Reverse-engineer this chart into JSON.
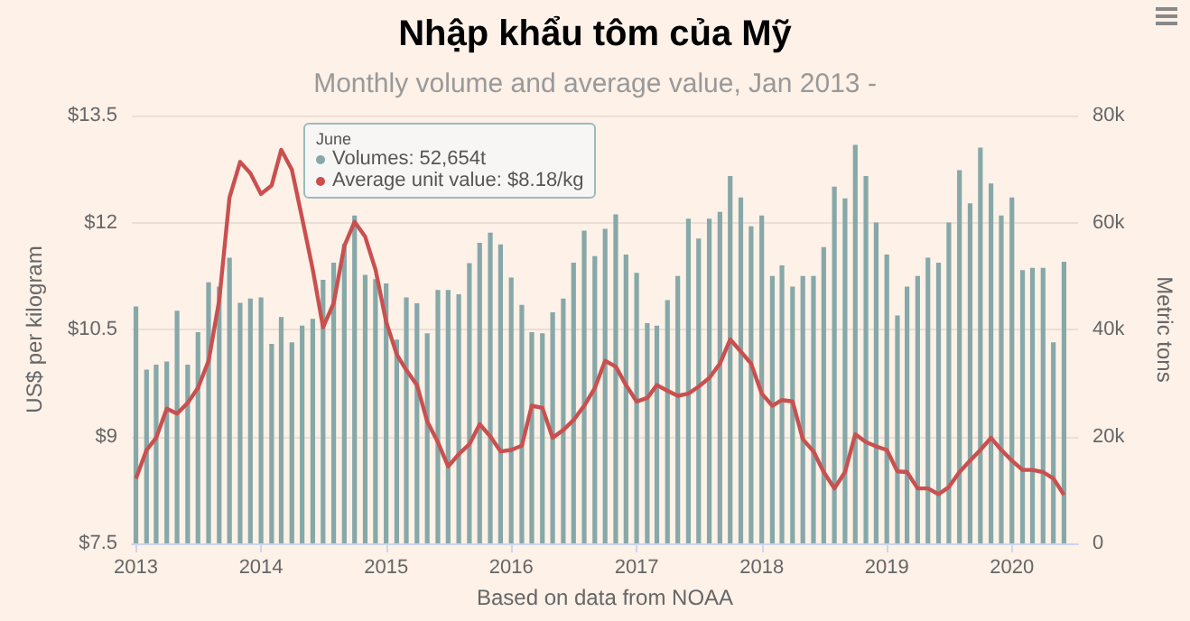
{
  "chart_data": {
    "type": "bar",
    "title": "Nhập khẩu tôm của Mỹ",
    "subtitle": "Monthly volume and average value, Jan 2013 -",
    "xlabel": "Based on data from NOAA",
    "ylabel": "US$ per kilogram",
    "y2label": "Metric tons",
    "annotations": [
      "June",
      "Volumes: 52,654t",
      "Average unit value: $8.18/kg"
    ],
    "x": [
      "2013-01",
      "2013-02",
      "2013-03",
      "2013-04",
      "2013-05",
      "2013-06",
      "2013-07",
      "2013-08",
      "2013-09",
      "2013-10",
      "2013-11",
      "2013-12",
      "2014-01",
      "2014-02",
      "2014-03",
      "2014-04",
      "2014-05",
      "2014-06",
      "2014-07",
      "2014-08",
      "2014-09",
      "2014-10",
      "2014-11",
      "2014-12",
      "2015-01",
      "2015-02",
      "2015-03",
      "2015-04",
      "2015-05",
      "2015-06",
      "2015-07",
      "2015-08",
      "2015-09",
      "2015-10",
      "2015-11",
      "2015-12",
      "2016-01",
      "2016-02",
      "2016-03",
      "2016-04",
      "2016-05",
      "2016-06",
      "2016-07",
      "2016-08",
      "2016-09",
      "2016-10",
      "2016-11",
      "2016-12",
      "2017-01",
      "2017-02",
      "2017-03",
      "2017-04",
      "2017-05",
      "2017-06",
      "2017-07",
      "2017-08",
      "2017-09",
      "2017-10",
      "2017-11",
      "2017-12",
      "2018-01",
      "2018-02",
      "2018-03",
      "2018-04",
      "2018-05",
      "2018-06",
      "2018-07",
      "2018-08",
      "2018-09",
      "2018-10",
      "2018-11",
      "2018-12",
      "2019-01",
      "2019-02",
      "2019-03",
      "2019-04",
      "2019-05",
      "2019-06",
      "2019-07",
      "2019-08",
      "2019-09",
      "2019-10",
      "2019-11",
      "2019-12",
      "2020-01",
      "2020-02",
      "2020-03",
      "2020-04",
      "2020-05",
      "2020-06"
    ],
    "xlim": [
      "2012-12-20",
      "2020-07-12"
    ],
    "xticks": [
      "2013",
      "2014",
      "2015",
      "2016",
      "2017",
      "2018",
      "2019",
      "2020"
    ],
    "ylim": [
      7.5,
      13.5
    ],
    "yticks": [
      {
        "value": 7.5,
        "label": "$7.5"
      },
      {
        "value": 9,
        "label": "$9"
      },
      {
        "value": 10.5,
        "label": "$10.5"
      },
      {
        "value": 12,
        "label": "$12"
      },
      {
        "value": 13.5,
        "label": "$13.5"
      }
    ],
    "y2lim": [
      0,
      80000
    ],
    "y2ticks": [
      0,
      {
        "value": 20000,
        "label": "20k"
      },
      {
        "value": 40000,
        "label": "40k"
      },
      {
        "value": 60000,
        "label": "60k"
      },
      {
        "value": 80000,
        "label": "80k"
      }
    ],
    "grid": "y",
    "marker": "none",
    "series": [
      {
        "axis": "y2",
        "color": "#86a8a8",
        "values": [
          44300,
          32500,
          33400,
          34000,
          43500,
          33400,
          39500,
          48800,
          48000,
          53400,
          45000,
          45800,
          46000,
          37300,
          42300,
          37600,
          40700,
          42000,
          49300,
          52500,
          56000,
          61300,
          50200,
          49400,
          48600,
          38100,
          46000,
          44900,
          39300,
          47400,
          47400,
          46600,
          52400,
          56200,
          58100,
          55900,
          49700,
          44600,
          39500,
          39300,
          43200,
          45800,
          52500,
          58500,
          53700,
          58800,
          61500,
          54000,
          50600,
          41200,
          40700,
          45500,
          50000,
          60700,
          57000,
          60700,
          62000,
          68700,
          64700,
          59300,
          61300,
          50000,
          52000,
          48000,
          50000,
          50000,
          55400,
          66700,
          64500,
          74500,
          68700,
          60000,
          54000,
          42600,
          48000,
          50000,
          53400,
          52500,
          60000,
          69800,
          63600,
          74000,
          67300,
          61300,
          64700,
          51100,
          51500,
          51500,
          37600,
          52654
        ]
      },
      {
        "type": "line",
        "color": "#c9504f",
        "values": [
          8.41,
          8.81,
          8.98,
          9.39,
          9.32,
          9.47,
          9.68,
          10.06,
          10.91,
          12.35,
          12.85,
          12.69,
          12.4,
          12.52,
          13.02,
          12.74,
          12.06,
          11.34,
          10.53,
          10.87,
          11.67,
          12.01,
          11.8,
          11.34,
          10.61,
          10.15,
          9.93,
          9.72,
          9.21,
          8.92,
          8.58,
          8.75,
          8.89,
          9.17,
          9.0,
          8.79,
          8.81,
          8.87,
          9.43,
          9.4,
          8.98,
          9.09,
          9.23,
          9.43,
          9.68,
          10.06,
          9.98,
          9.72,
          9.49,
          9.54,
          9.72,
          9.64,
          9.57,
          9.6,
          9.7,
          9.82,
          10.02,
          10.36,
          10.19,
          10.02,
          9.6,
          9.43,
          9.51,
          9.49,
          8.96,
          8.79,
          8.5,
          8.27,
          8.5,
          9.03,
          8.92,
          8.86,
          8.81,
          8.51,
          8.5,
          8.27,
          8.27,
          8.19,
          8.29,
          8.5,
          8.66,
          8.81,
          8.98,
          8.81,
          8.66,
          8.53,
          8.53,
          8.5,
          8.41,
          8.18
        ]
      }
    ]
  }
}
